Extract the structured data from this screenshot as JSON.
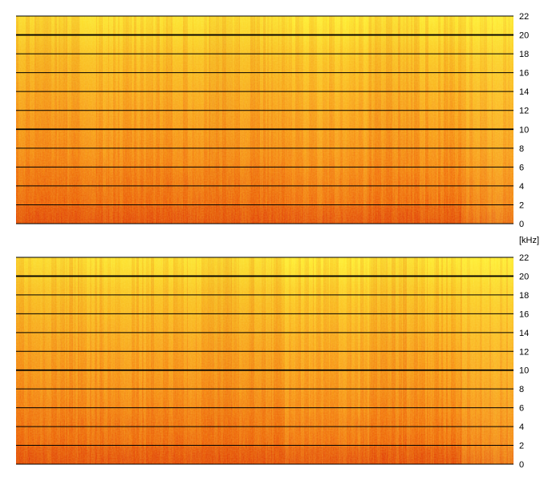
{
  "chart_data": [
    {
      "type": "heatmap",
      "subtype": "spectrogram",
      "channel": "upper",
      "yticks": [
        "22",
        "20",
        "18",
        "16",
        "14",
        "12",
        "10",
        "8",
        "6",
        "4",
        "2",
        "0"
      ],
      "ylim": [
        0,
        22
      ],
      "y_unit": "[kHz]",
      "emphasized_lines": [
        20,
        10
      ],
      "colormap": [
        "#d81e05",
        "#f26b0f",
        "#f79a1c",
        "#fbd22a",
        "#ffff3a"
      ]
    },
    {
      "type": "heatmap",
      "subtype": "spectrogram",
      "channel": "lower",
      "yticks": [
        "22",
        "20",
        "18",
        "16",
        "14",
        "12",
        "10",
        "8",
        "6",
        "4",
        "2",
        "0"
      ],
      "ylim": [
        0,
        22
      ],
      "emphasized_lines": [
        20,
        10
      ],
      "colormap": [
        "#d81e05",
        "#f26b0f",
        "#f79a1c",
        "#fbd22a",
        "#ffff3a"
      ]
    }
  ],
  "unit_label": "[kHz]"
}
